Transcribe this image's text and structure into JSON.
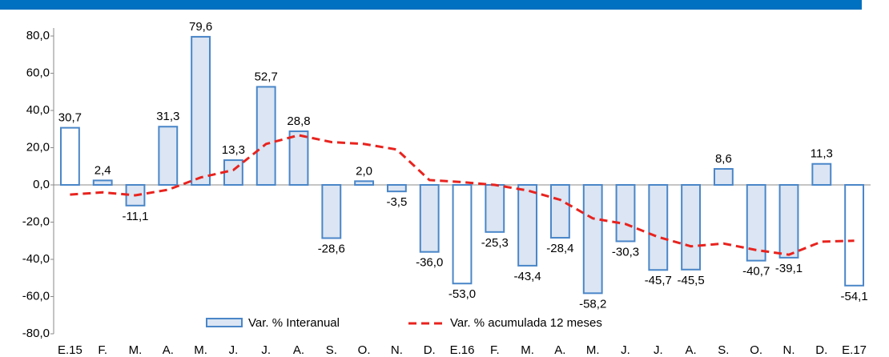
{
  "chart_data": {
    "type": "bar",
    "categories": [
      "E.15",
      "F.",
      "M.",
      "A.",
      "M.",
      "J.",
      "J.",
      "A.",
      "S.",
      "O.",
      "N.",
      "D.",
      "E.16",
      "F.",
      "M.",
      "A.",
      "M.",
      "J.",
      "J.",
      "A.",
      "S.",
      "O.",
      "N.",
      "D.",
      "E.17"
    ],
    "series": [
      {
        "name": "Var. % Interanual",
        "type": "bar",
        "color": "#dbe5f3",
        "edge": "#4a86c8",
        "colors": [
          "#ffffff",
          "#dbe5f3",
          "#dbe5f3",
          "#dbe5f3",
          "#dbe5f3",
          "#dbe5f3",
          "#dbe5f3",
          "#dbe5f3",
          "#dbe5f3",
          "#dbe5f3",
          "#dbe5f3",
          "#dbe5f3",
          "#ffffff",
          "#dbe5f3",
          "#dbe5f3",
          "#dbe5f3",
          "#dbe5f3",
          "#dbe5f3",
          "#dbe5f3",
          "#dbe5f3",
          "#dbe5f3",
          "#dbe5f3",
          "#dbe5f3",
          "#dbe5f3",
          "#ffffff"
        ],
        "values": [
          30.7,
          2.4,
          -11.1,
          31.3,
          79.6,
          13.3,
          52.7,
          28.8,
          -28.6,
          2.0,
          -3.5,
          -36.0,
          -53.0,
          -25.3,
          -43.4,
          -28.4,
          -58.2,
          -30.3,
          -45.7,
          -45.5,
          8.6,
          -40.7,
          -39.1,
          11.3,
          -54.1
        ],
        "value_labels": [
          "30,7",
          "2,4",
          "-11,1",
          "31,3",
          "79,6",
          "13,3",
          "52,7",
          "28,8",
          "-28,6",
          "2,0",
          "-3,5",
          "-36,0",
          "-53,0",
          "-25,3",
          "-43,4",
          "-28,4",
          "-58,2",
          "-30,3",
          "-45,7",
          "-45,5",
          "8,6",
          "-40,7",
          "-39,1",
          "11,3",
          "-54,1"
        ]
      },
      {
        "name": "Var. % acumulada 12 meses",
        "type": "line",
        "color": "#e8231e",
        "values": [
          -5.2,
          -4,
          -5.6,
          -2.6,
          4,
          8,
          22,
          26.7,
          23,
          22,
          19,
          2.6,
          1.5,
          0,
          -3,
          -8,
          -18,
          -21,
          -28,
          -33,
          -31.5,
          -35,
          -37.5,
          -30.5,
          -30
        ]
      }
    ],
    "ylim": [
      -80,
      80
    ],
    "yticks": [
      {
        "value": -80,
        "label": "-80,0"
      },
      {
        "value": -60,
        "label": "-60,0"
      },
      {
        "value": -40,
        "label": "-40,0"
      },
      {
        "value": -20,
        "label": "-20,0"
      },
      {
        "value": 0,
        "label": "0,0"
      },
      {
        "value": 20,
        "label": "20,0"
      },
      {
        "value": 40,
        "label": "40,0"
      },
      {
        "value": 60,
        "label": "60,0"
      },
      {
        "value": 80,
        "label": "80,0"
      }
    ],
    "banner_color": "#0070c0"
  }
}
